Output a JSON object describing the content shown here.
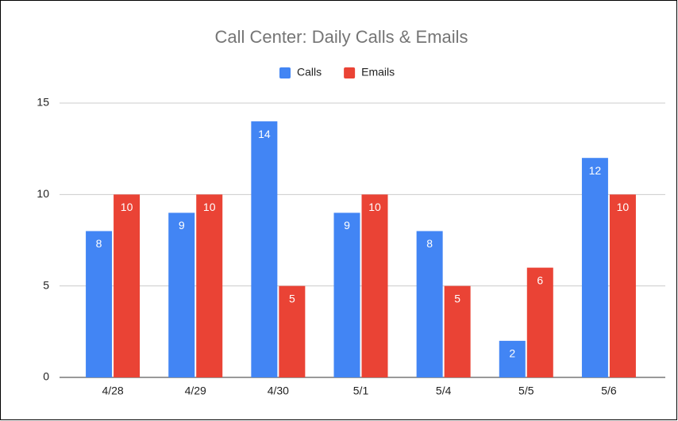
{
  "chart_data": {
    "type": "grouped_bar",
    "title": "Call Center: Daily Calls & Emails",
    "categories": [
      "4/28",
      "4/29",
      "4/30",
      "5/1",
      "5/4",
      "5/5",
      "5/6"
    ],
    "series": [
      {
        "name": "Calls",
        "color": "#4285f4",
        "values": [
          8,
          9,
          14,
          9,
          8,
          2,
          12
        ]
      },
      {
        "name": "Emails",
        "color": "#ea4335",
        "values": [
          10,
          10,
          5,
          10,
          5,
          6,
          10
        ]
      }
    ],
    "ylim": [
      0,
      15
    ],
    "yticks": [
      0,
      5,
      10,
      15
    ],
    "grid": true,
    "legend": "top"
  }
}
